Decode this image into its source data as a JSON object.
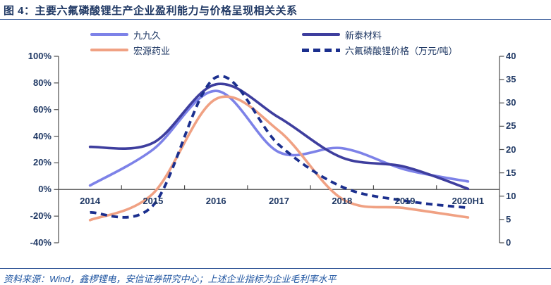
{
  "page": {
    "title": "图 4：主要六氟磷酸锂生产企业盈利能力与价格呈现相关关系",
    "source_note": "资料来源：Wind，鑫椤锂电，安信证券研究中心；上述企业指标为企业毛利率水平"
  },
  "colors": {
    "title_text": "#1f3864",
    "axis_text": "#1f3864",
    "rule": "#2e5395",
    "axis_line": "#4d4d4d",
    "footer_text": "#1f55a1"
  },
  "chart_data": {
    "type": "line",
    "title": "主要六氟磷酸锂生产企业盈利能力与价格呈现相关关系",
    "categories": [
      "2014",
      "2015",
      "2016",
      "2017",
      "2018",
      "2019",
      "2020H1"
    ],
    "series": [
      {
        "name": "九九久",
        "slug": "jiujiujiu",
        "axis": "left",
        "unit": "%",
        "color": "#7d82e8",
        "dashed": false,
        "values": [
          3,
          30,
          74,
          28,
          31,
          15,
          6
        ]
      },
      {
        "name": "新泰材料",
        "slug": "xintai-cailiao",
        "axis": "left",
        "unit": "%",
        "color": "#3e3e9e",
        "dashed": false,
        "values": [
          32,
          35,
          79,
          54,
          24,
          17,
          0.5
        ]
      },
      {
        "name": "宏源药业",
        "slug": "hongyuan-yaoye",
        "axis": "left",
        "unit": "%",
        "color": "#f0a183",
        "dashed": false,
        "values": [
          -23,
          -3,
          68,
          44,
          -7,
          -14,
          -21
        ]
      },
      {
        "name": "六氟磷酸锂价格（万元/吨）",
        "slug": "lipf6-price",
        "axis": "right",
        "unit": "万元/吨",
        "color": "#1b2f8e",
        "dashed": true,
        "values": [
          6.5,
          8,
          35.5,
          21,
          12,
          9,
          7.5
        ]
      }
    ],
    "left_axis": {
      "min": -40,
      "max": 100,
      "ticks": [
        "100%",
        "80%",
        "60%",
        "40%",
        "20%",
        "0%",
        "-20%",
        "-40%"
      ]
    },
    "right_axis": {
      "min": 0,
      "max": 40,
      "ticks": [
        "40",
        "35",
        "30",
        "25",
        "20",
        "15",
        "10",
        "5",
        "0"
      ]
    },
    "legend_position": "top",
    "grid": false
  }
}
